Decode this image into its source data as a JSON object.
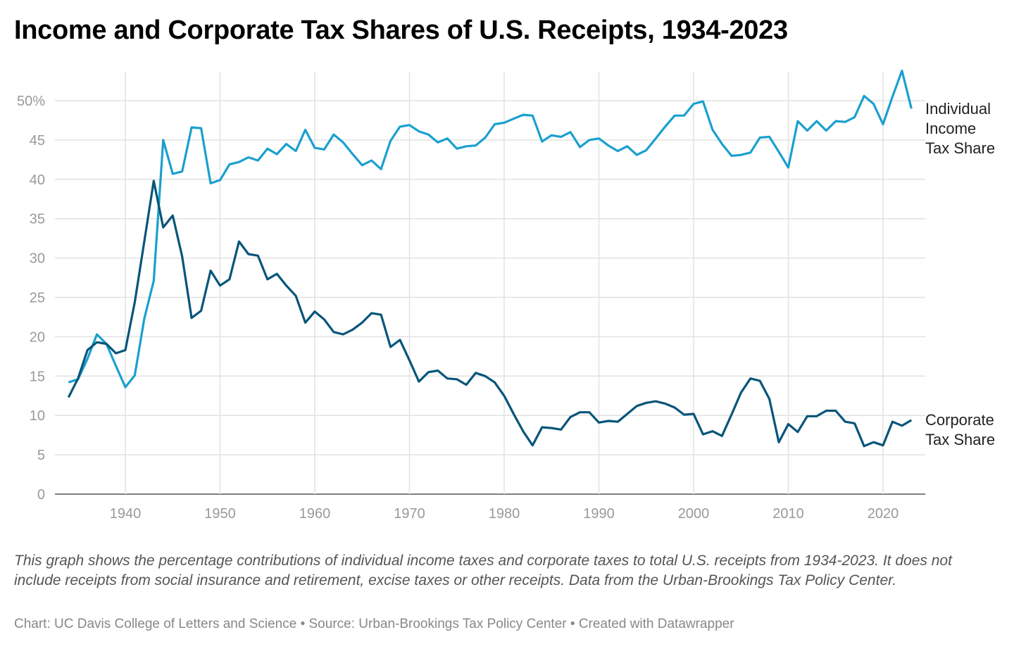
{
  "title": "Income and Corporate Tax Shares of U.S. Receipts, 1934-2023",
  "notes": "This graph shows the percentage contributions of individual income taxes and corporate taxes to total U.S. receipts from 1934-2023. It does not include receipts from social insurance and retirement, excise taxes or other receipts. Data from the Urban-Brookings Tax Policy Center.",
  "credit": "Chart: UC Davis College of Letters and Science • Source: Urban-Brookings Tax Policy Center • Created with Datawrapper",
  "chart_data": {
    "type": "line",
    "title": "Income and Corporate Tax Shares of U.S. Receipts, 1934-2023",
    "xlim": [
      1934,
      2023
    ],
    "ylim": [
      0,
      54
    ],
    "x_ticks": [
      "1940",
      "1950",
      "1960",
      "1970",
      "1980",
      "1990",
      "2000",
      "2010",
      "2020"
    ],
    "y_ticks": [
      "0",
      "5",
      "10",
      "15",
      "20",
      "25",
      "30",
      "35",
      "40",
      "45",
      "50%"
    ],
    "grid": true,
    "legend": "direct labels at right end of lines",
    "x_start": 1934,
    "series": [
      {
        "name": "Individual Income Tax Share",
        "label_lines": [
          "Individual",
          "Income",
          "Tax Share"
        ],
        "color": "#1aa0cf",
        "values": [
          14.2,
          14.6,
          17.2,
          20.3,
          19.1,
          16.3,
          13.6,
          15.1,
          22.3,
          27.1,
          45.0,
          40.7,
          41.0,
          46.6,
          46.5,
          39.5,
          39.9,
          41.9,
          42.2,
          42.8,
          42.4,
          43.9,
          43.2,
          44.5,
          43.6,
          46.3,
          44.0,
          43.8,
          45.7,
          44.7,
          43.2,
          41.8,
          42.4,
          41.3,
          44.9,
          46.7,
          46.9,
          46.1,
          45.7,
          44.7,
          45.2,
          43.9,
          44.2,
          44.3,
          45.3,
          47.0,
          47.2,
          47.7,
          48.2,
          48.1,
          44.8,
          45.6,
          45.4,
          46.0,
          44.1,
          45.0,
          45.2,
          44.3,
          43.6,
          44.2,
          43.1,
          43.7,
          45.2,
          46.7,
          48.1,
          48.1,
          49.6,
          49.9,
          46.3,
          44.5,
          43.0,
          43.1,
          43.4,
          45.3,
          45.4,
          43.5,
          41.5,
          47.4,
          46.2,
          47.4,
          46.2,
          47.4,
          47.3,
          47.9,
          50.6,
          49.6,
          47.0,
          50.5,
          53.8,
          49.0
        ]
      },
      {
        "name": "Corporate Tax Share",
        "label_lines": [
          "Corporate",
          "Tax Share"
        ],
        "color": "#07557a",
        "values": [
          12.3,
          14.7,
          18.3,
          19.3,
          19.1,
          17.9,
          18.3,
          24.4,
          32.1,
          39.8,
          33.9,
          35.4,
          30.2,
          22.4,
          23.3,
          28.4,
          26.5,
          27.3,
          32.1,
          30.5,
          30.3,
          27.3,
          28.0,
          26.5,
          25.2,
          21.8,
          23.2,
          22.2,
          20.6,
          20.3,
          20.9,
          21.8,
          23.0,
          22.8,
          18.7,
          19.6,
          17.0,
          14.3,
          15.5,
          15.7,
          14.7,
          14.6,
          13.9,
          15.4,
          15.0,
          14.2,
          12.5,
          10.2,
          8.0,
          6.2,
          8.5,
          8.4,
          8.2,
          9.8,
          10.4,
          10.4,
          9.1,
          9.3,
          9.2,
          10.2,
          11.2,
          11.6,
          11.8,
          11.5,
          11.0,
          10.1,
          10.2,
          7.6,
          8.0,
          7.4,
          10.1,
          12.9,
          14.7,
          14.4,
          12.1,
          6.6,
          8.9,
          7.9,
          9.9,
          9.9,
          10.6,
          10.6,
          9.2,
          9.0,
          6.1,
          6.6,
          6.2,
          9.2,
          8.7,
          9.4
        ]
      }
    ]
  }
}
